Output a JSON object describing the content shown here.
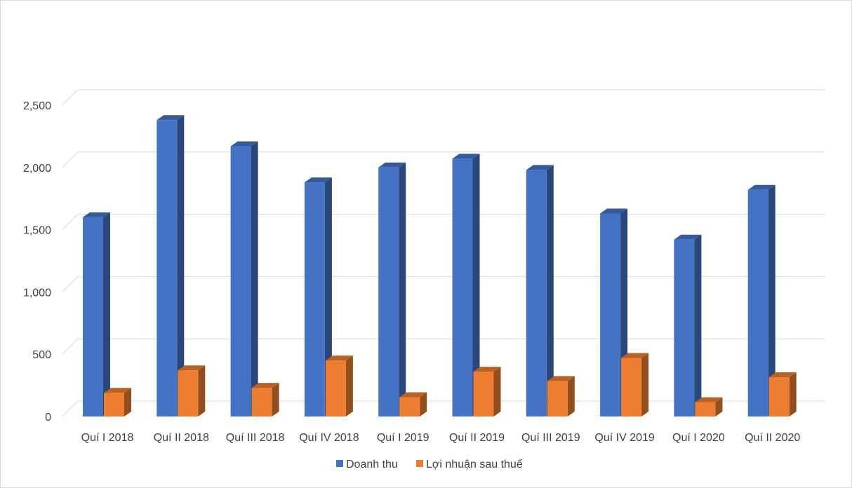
{
  "chart_data": {
    "type": "bar",
    "subtype": "3d-clustered-column",
    "categories": [
      "Quí I 2018",
      "Quí II 2018",
      "Quí III 2018",
      "Quí IV 2018",
      "Quí I 2019",
      "Quí II 2019",
      "Quí III 2019",
      "Quí IV 2019",
      "Quí I 2020",
      "Quí II 2020"
    ],
    "series": [
      {
        "name": "Doanh thu",
        "color": "#4472c4",
        "values": [
          1600,
          2380,
          2170,
          1880,
          2000,
          2070,
          1980,
          1630,
          1420,
          1820
        ]
      },
      {
        "name": "Lợi nhuận sau thuế",
        "color": "#ed7d31",
        "values": [
          190,
          370,
          230,
          450,
          155,
          360,
          285,
          470,
          115,
          315
        ]
      }
    ],
    "y_ticks": [
      "0",
      "500",
      "1,000",
      "1,500",
      "2,000",
      "2,500"
    ],
    "y_tick_values": [
      0,
      500,
      1000,
      1500,
      2000,
      2500
    ],
    "ylim": [
      0,
      2500
    ],
    "grid": true,
    "legend_position": "bottom"
  }
}
